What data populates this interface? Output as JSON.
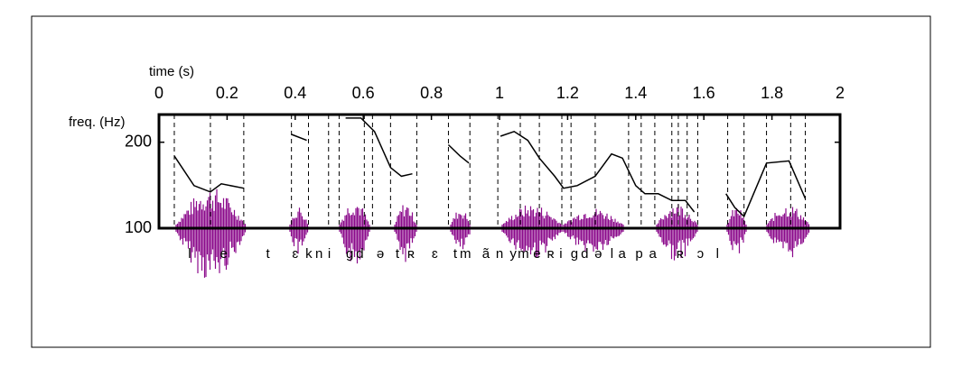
{
  "chart_data": {
    "type": "line",
    "x_label": "time (s)",
    "y_label": "freq. (Hz)",
    "xlim": [
      0,
      2
    ],
    "xticks": [
      0,
      0.2,
      0.4,
      0.6,
      0.8,
      1,
      1.2,
      1.4,
      1.6,
      1.8,
      2
    ],
    "ylim": [
      100,
      250
    ],
    "yticks": [
      100,
      200
    ],
    "log_y": true,
    "series": [
      {
        "color": "#000000",
        "x": [
          0.045,
          0.103,
          0.151,
          0.183,
          0.249,
          null,
          0.389,
          0.434,
          null,
          0.548,
          0.593,
          0.633,
          0.68,
          0.712,
          0.744,
          null,
          0.85,
          0.884,
          0.91,
          null,
          1.003,
          1.043,
          1.083,
          1.117,
          1.162,
          1.188,
          1.228,
          1.281,
          1.329,
          1.361,
          1.4,
          1.427,
          1.466,
          1.506,
          1.546,
          1.572,
          null,
          1.665,
          1.691,
          1.718,
          1.784,
          1.85,
          1.898
        ],
        "values": [
          179,
          141,
          134,
          143,
          138,
          null,
          213,
          203,
          null,
          243,
          243,
          218,
          163,
          152,
          155,
          null,
          196,
          179,
          169,
          null,
          210,
          218,
          203,
          176,
          152,
          138,
          141,
          152,
          182,
          176,
          141,
          132,
          132,
          125,
          125,
          114,
          null,
          132,
          118,
          110,
          169,
          172,
          127
        ]
      }
    ],
    "boundaries": [
      0.045,
      0.151,
      0.249,
      0.389,
      0.439,
      0.498,
      0.529,
      0.603,
      0.627,
      0.68,
      0.757,
      0.85,
      0.913,
      0.995,
      1.061,
      1.117,
      1.183,
      1.21,
      1.281,
      1.379,
      1.416,
      1.456,
      1.506,
      1.525,
      1.551,
      1.582,
      1.67,
      1.718,
      1.784,
      1.855,
      1.898
    ],
    "phonemes": [
      {
        "label": "l",
        "time": 0.09
      },
      {
        "label": "e",
        "time": 0.19
      },
      {
        "label": "t",
        "time": 0.32
      },
      {
        "label": "ɛ",
        "time": 0.4
      },
      {
        "label": "k",
        "time": 0.44
      },
      {
        "label": "n",
        "time": 0.47
      },
      {
        "label": "i",
        "time": 0.5
      },
      {
        "label": "g",
        "time": 0.56
      },
      {
        "label": "d",
        "time": 0.59
      },
      {
        "label": "ə",
        "time": 0.65
      },
      {
        "label": "t",
        "time": 0.7
      },
      {
        "label": "ʀ",
        "time": 0.74
      },
      {
        "label": "ɛ",
        "time": 0.81
      },
      {
        "label": "t",
        "time": 0.87
      },
      {
        "label": "m",
        "time": 0.9
      },
      {
        "label": "ã",
        "time": 0.96
      },
      {
        "label": "n",
        "time": 1.0
      },
      {
        "label": "y",
        "time": 1.04
      },
      {
        "label": "m",
        "time": 1.07
      },
      {
        "label": "e",
        "time": 1.11
      },
      {
        "label": "ʀ",
        "time": 1.15
      },
      {
        "label": "i",
        "time": 1.18
      },
      {
        "label": "g",
        "time": 1.22
      },
      {
        "label": "d",
        "time": 1.25
      },
      {
        "label": "ə",
        "time": 1.29
      },
      {
        "label": "l",
        "time": 1.33
      },
      {
        "label": "a",
        "time": 1.36
      },
      {
        "label": "p",
        "time": 1.41
      },
      {
        "label": "a",
        "time": 1.45
      },
      {
        "label": "ʀ",
        "time": 1.53
      },
      {
        "label": "ɔ",
        "time": 1.59
      },
      {
        "label": "l",
        "time": 1.64
      }
    ]
  }
}
